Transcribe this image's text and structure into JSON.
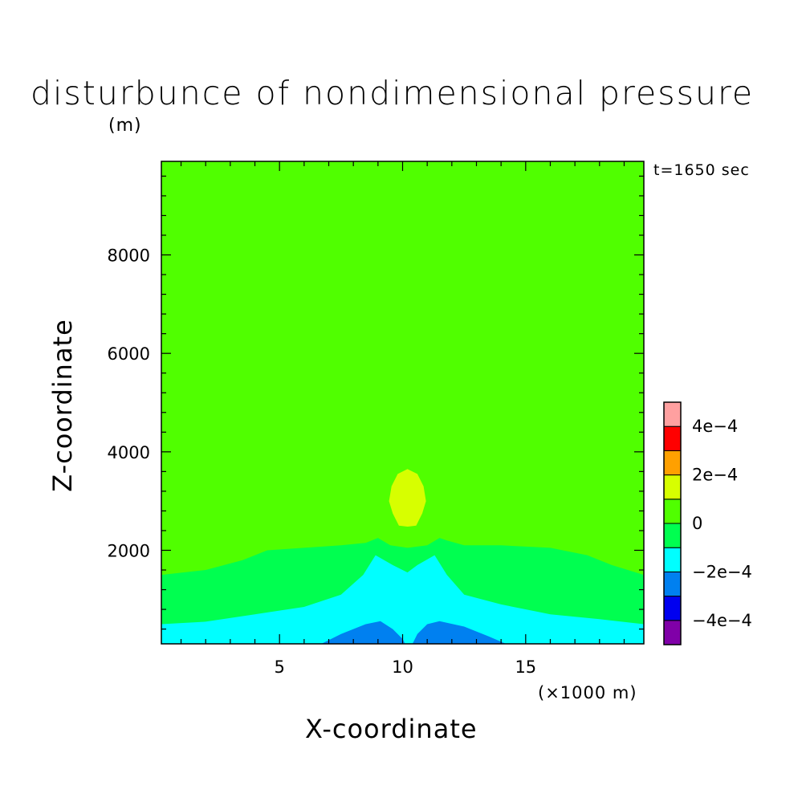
{
  "chart_data": {
    "type": "contour",
    "title": "disturbunce of nondimensional pressure",
    "unit_label": "(m)",
    "time_label": "t=1650 sec",
    "xlabel": "X-coordinate",
    "x_multiplier_label": "(×1000 m)",
    "ylabel": "Z-coordinate",
    "xlim": [
      0.2,
      19.8
    ],
    "ylim": [
      100,
      9900
    ],
    "x_ticks": [
      {
        "value": 5,
        "label": "5"
      },
      {
        "value": 10,
        "label": "10"
      },
      {
        "value": 15,
        "label": "15"
      }
    ],
    "y_ticks": [
      {
        "value": 2000,
        "label": "2000"
      },
      {
        "value": 4000,
        "label": "4000"
      },
      {
        "value": 6000,
        "label": "6000"
      },
      {
        "value": 8000,
        "label": "8000"
      }
    ],
    "colorbar": {
      "levels": [
        -0.0005,
        -0.0004,
        -0.0003,
        -0.0002,
        -0.0001,
        0,
        0.0001,
        0.0002,
        0.0003,
        0.0004,
        0.0005
      ],
      "colors": [
        "#8000a8",
        "#0000f0",
        "#0080f0",
        "#00ffff",
        "#00ff50",
        "#50ff00",
        "#d7ff00",
        "#ffa000",
        "#ff0000",
        "#ffa0a0"
      ],
      "labels": [
        {
          "value": -0.0004,
          "label": "−4e−4"
        },
        {
          "value": -0.0002,
          "label": "−2e−4"
        },
        {
          "value": 0,
          "label": "0"
        },
        {
          "value": 0.0002,
          "label": "2e−4"
        },
        {
          "value": 0.0004,
          "label": "4e−4"
        }
      ]
    },
    "regions": [
      {
        "level": "0 to 1e-4",
        "color": "#50ff00",
        "outline": [
          [
            0.2,
            100
          ],
          [
            19.8,
            100
          ],
          [
            19.8,
            9900
          ],
          [
            0.2,
            9900
          ]
        ]
      },
      {
        "level": "1e-4 to 2e-4",
        "color": "#d7ff00",
        "outline": [
          [
            10.2,
            3650
          ],
          [
            10.6,
            3550
          ],
          [
            10.85,
            3300
          ],
          [
            10.95,
            3000
          ],
          [
            10.8,
            2750
          ],
          [
            10.55,
            2500
          ],
          [
            10.2,
            2480
          ],
          [
            9.85,
            2500
          ],
          [
            9.6,
            2750
          ],
          [
            9.45,
            3000
          ],
          [
            9.55,
            3300
          ],
          [
            9.8,
            3550
          ]
        ]
      },
      {
        "level": "-1e-4 to 0",
        "color": "#00ff50",
        "outline": [
          [
            0.2,
            100
          ],
          [
            19.8,
            100
          ],
          [
            19.8,
            1500
          ],
          [
            18.5,
            1700
          ],
          [
            17.5,
            1900
          ],
          [
            16,
            2050
          ],
          [
            14,
            2100
          ],
          [
            12.5,
            2100
          ],
          [
            11.8,
            2200
          ],
          [
            11.5,
            2250
          ],
          [
            11,
            2100
          ],
          [
            10.2,
            2050
          ],
          [
            9.5,
            2100
          ],
          [
            9,
            2250
          ],
          [
            8.5,
            2150
          ],
          [
            7.5,
            2100
          ],
          [
            6,
            2050
          ],
          [
            4.5,
            2000
          ],
          [
            3.5,
            1800
          ],
          [
            2,
            1600
          ],
          [
            0.2,
            1500
          ]
        ]
      },
      {
        "level": "-2e-4 to -1e-4",
        "color": "#00ffff",
        "outline": [
          [
            0.2,
            100
          ],
          [
            19.8,
            100
          ],
          [
            19.8,
            500
          ],
          [
            18,
            600
          ],
          [
            16,
            700
          ],
          [
            14,
            900
          ],
          [
            12.5,
            1100
          ],
          [
            11.8,
            1500
          ],
          [
            11.3,
            1900
          ],
          [
            10.6,
            1700
          ],
          [
            10.2,
            1550
          ],
          [
            9.6,
            1700
          ],
          [
            8.9,
            1900
          ],
          [
            8.4,
            1500
          ],
          [
            7.5,
            1100
          ],
          [
            6,
            850
          ],
          [
            4,
            700
          ],
          [
            2,
            550
          ],
          [
            0.2,
            500
          ]
        ]
      },
      {
        "level": "-3e-4 to -2e-4",
        "color": "#0080f0",
        "outline": [
          [
            6.7,
            100
          ],
          [
            7.5,
            300
          ],
          [
            8.5,
            500
          ],
          [
            9.1,
            560
          ],
          [
            9.6,
            400
          ],
          [
            10.0,
            200
          ],
          [
            10.1,
            100
          ],
          [
            10.4,
            100
          ],
          [
            10.6,
            300
          ],
          [
            11,
            500
          ],
          [
            11.5,
            560
          ],
          [
            12.5,
            450
          ],
          [
            13.5,
            250
          ],
          [
            14.2,
            100
          ]
        ]
      }
    ]
  }
}
